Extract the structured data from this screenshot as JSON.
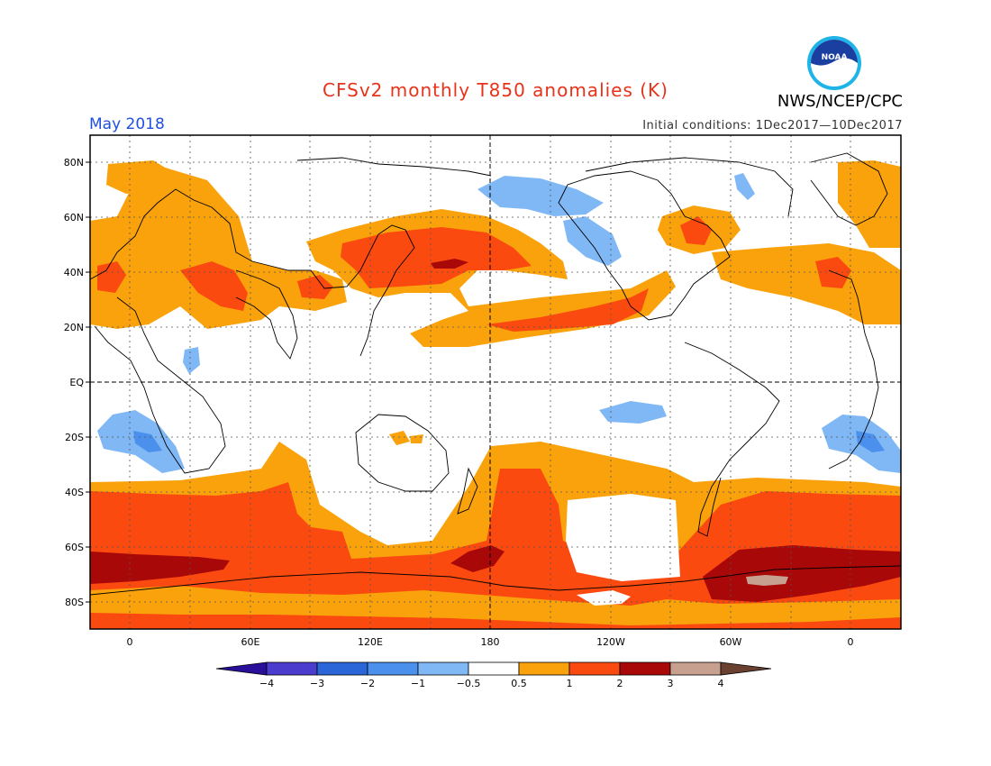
{
  "header": {
    "title": "CFSv2 monthly T850 anomalies (K)",
    "agency": "NWS/NCEP/CPC",
    "valid_month": "May 2018",
    "initial_conditions": "Initial conditions: 1Dec2017—10Dec2017",
    "logo_text": "NOAA",
    "title_color": "#e8321a",
    "month_color": "#1f4fe0"
  },
  "map": {
    "projection": "cylindrical equidistant, centered 180",
    "lat_labels": [
      "80N",
      "60N",
      "40N",
      "20N",
      "EQ",
      "20S",
      "40S",
      "60S",
      "80S"
    ],
    "lon_labels": [
      "0",
      "60E",
      "120E",
      "180",
      "120W",
      "60W",
      "0"
    ],
    "grid": "dotted",
    "reference_lines": [
      "EQ",
      "180"
    ]
  },
  "legend": {
    "tick_labels": [
      "−4",
      "−3",
      "−2",
      "−1",
      "−0.5",
      "0.5",
      "1",
      "2",
      "3",
      "4"
    ],
    "colors": [
      "#2a0f9b",
      "#4a3ccc",
      "#2a66d8",
      "#4a90ec",
      "#80b8f5",
      "#ffffff",
      "#f9a20b",
      "#fb4a0f",
      "#a80808",
      "#c8a090",
      "#6a4030"
    ]
  }
}
